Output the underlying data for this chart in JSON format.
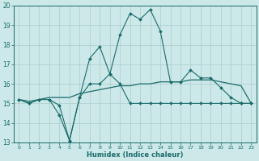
{
  "xlabel": "Humidex (Indice chaleur)",
  "xlim": [
    -0.5,
    23.5
  ],
  "ylim": [
    13,
    20
  ],
  "yticks": [
    13,
    14,
    15,
    16,
    17,
    18,
    19,
    20
  ],
  "xticks": [
    0,
    1,
    2,
    3,
    4,
    5,
    6,
    7,
    8,
    9,
    10,
    11,
    12,
    13,
    14,
    15,
    16,
    17,
    18,
    19,
    20,
    21,
    22,
    23
  ],
  "bg_color": "#cce8e8",
  "grid_color": "#aacccc",
  "line_color": "#1a6b6b",
  "line1_x": [
    0,
    1,
    2,
    3,
    4,
    5,
    6,
    7,
    8,
    9,
    10,
    11,
    12,
    13,
    14,
    15,
    16,
    17,
    18,
    19,
    20,
    21,
    22,
    23
  ],
  "line1_y": [
    15.2,
    15.0,
    15.2,
    15.2,
    14.9,
    13.1,
    15.3,
    17.3,
    17.9,
    16.5,
    18.5,
    19.6,
    19.3,
    19.8,
    18.7,
    16.1,
    16.1,
    16.7,
    16.3,
    16.3,
    15.8,
    15.3,
    15.0,
    15.0
  ],
  "line2_x": [
    0,
    1,
    2,
    3,
    4,
    5,
    6,
    7,
    8,
    9,
    10,
    11,
    12,
    13,
    14,
    15,
    16,
    17,
    18,
    19,
    20,
    21,
    22,
    23
  ],
  "line2_y": [
    15.2,
    15.0,
    15.2,
    15.2,
    14.4,
    13.1,
    15.3,
    16.0,
    16.0,
    16.5,
    16.0,
    15.0,
    15.0,
    15.0,
    15.0,
    15.0,
    15.0,
    15.0,
    15.0,
    15.0,
    15.0,
    15.0,
    15.0,
    15.0
  ],
  "line3_x": [
    0,
    1,
    2,
    3,
    4,
    5,
    6,
    7,
    8,
    9,
    10,
    11,
    12,
    13,
    14,
    15,
    16,
    17,
    18,
    19,
    20,
    21,
    22,
    23
  ],
  "line3_y": [
    15.2,
    15.1,
    15.2,
    15.3,
    15.3,
    15.3,
    15.5,
    15.6,
    15.7,
    15.8,
    15.9,
    15.9,
    16.0,
    16.0,
    16.1,
    16.1,
    16.1,
    16.2,
    16.2,
    16.2,
    16.1,
    16.0,
    15.9,
    15.0
  ]
}
